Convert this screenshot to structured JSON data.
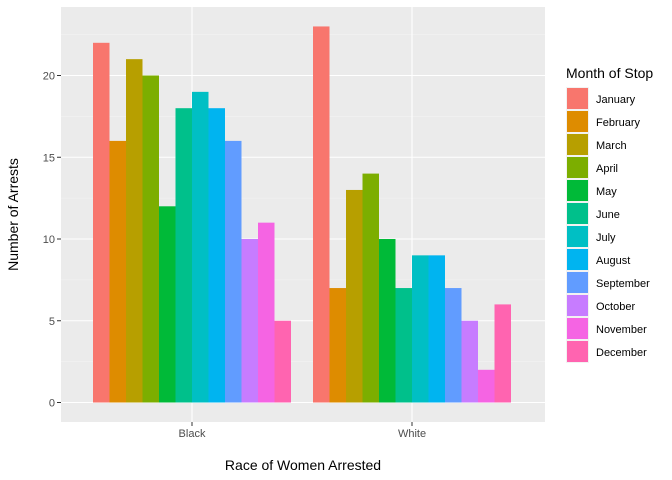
{
  "chart_data": {
    "type": "bar",
    "grouped": true,
    "categories": [
      "Black",
      "White"
    ],
    "xlabel": "Race of Women Arrested",
    "ylabel": "Number of Arrests",
    "ylim": [
      0,
      23
    ],
    "yticks": [
      0,
      5,
      10,
      15,
      20
    ],
    "grid": true,
    "legend": {
      "title": "Month of Stop",
      "placement": "right"
    },
    "series": [
      {
        "name": "January",
        "color": "#F8766D",
        "values": [
          22,
          23
        ]
      },
      {
        "name": "February",
        "color": "#DE8C00",
        "values": [
          16,
          7
        ]
      },
      {
        "name": "March",
        "color": "#B79F00",
        "values": [
          21,
          13
        ]
      },
      {
        "name": "April",
        "color": "#7CAE00",
        "values": [
          20,
          14
        ]
      },
      {
        "name": "May",
        "color": "#00BA38",
        "values": [
          12,
          10
        ]
      },
      {
        "name": "June",
        "color": "#00C08B",
        "values": [
          18,
          7
        ]
      },
      {
        "name": "July",
        "color": "#00BFC4",
        "values": [
          19,
          9
        ]
      },
      {
        "name": "August",
        "color": "#00B4F0",
        "values": [
          18,
          9
        ]
      },
      {
        "name": "September",
        "color": "#619CFF",
        "values": [
          16,
          7
        ]
      },
      {
        "name": "October",
        "color": "#C77CFF",
        "values": [
          10,
          5
        ]
      },
      {
        "name": "November",
        "color": "#F564E3",
        "values": [
          11,
          2
        ]
      },
      {
        "name": "December",
        "color": "#FF64B0",
        "values": [
          5,
          6
        ]
      }
    ],
    "panel_background": "#EBEBEB",
    "gridline_color": "#FFFFFF"
  }
}
